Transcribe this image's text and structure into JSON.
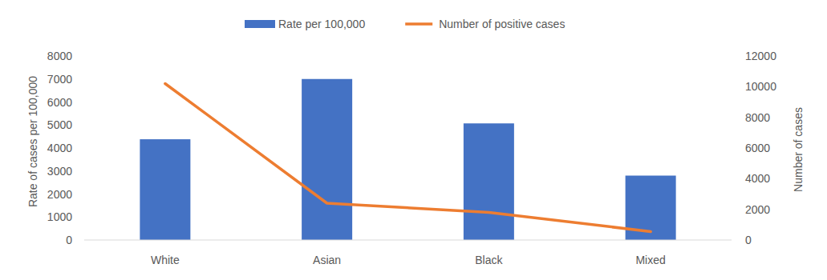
{
  "chart_data": {
    "type": "bar",
    "categories": [
      "White",
      "Asian",
      "Black",
      "Mixed"
    ],
    "series": [
      {
        "name": "Rate per 100,000",
        "type": "bar",
        "color": "#4472c4",
        "values": [
          4380,
          7000,
          5070,
          2800
        ]
      },
      {
        "name": "Number of positive cases",
        "type": "line",
        "color": "#ed7d31",
        "axis": "y2",
        "values": [
          10200,
          2400,
          1800,
          550
        ]
      }
    ],
    "ylabel": "Rate of cases per 100,000",
    "y2label": "Number of cases",
    "ylim": [
      0,
      8000
    ],
    "yticks": [
      0,
      1000,
      2000,
      3000,
      4000,
      5000,
      6000,
      7000,
      8000
    ],
    "y2lim": [
      0,
      12000
    ],
    "y2ticks": [
      0,
      2000,
      4000,
      6000,
      8000,
      10000,
      12000
    ],
    "grid": false,
    "legend": "top"
  }
}
